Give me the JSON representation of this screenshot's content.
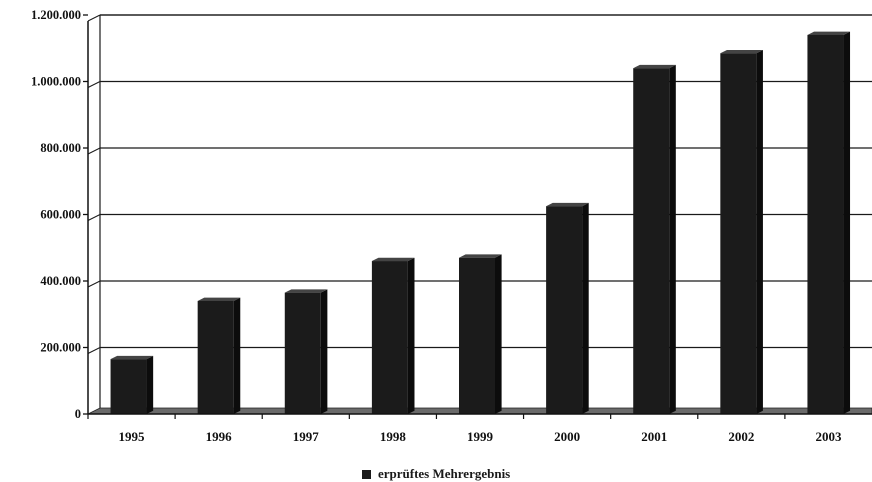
{
  "chart_data": {
    "type": "bar",
    "categories": [
      "1995",
      "1996",
      "1997",
      "1998",
      "1999",
      "2000",
      "2001",
      "2002",
      "2003"
    ],
    "series": [
      {
        "name": "erprüftes Mehrergebnis",
        "values": [
          165000,
          340000,
          365000,
          460000,
          470000,
          625000,
          1040000,
          1085000,
          1140000
        ]
      }
    ],
    "y_ticks": [
      "0",
      "200.000",
      "400.000",
      "600.000",
      "800.000",
      "1.000.000",
      "1.200.000"
    ],
    "ylim": [
      0,
      1200000
    ],
    "grid": true,
    "legend_position": "bottom",
    "colors": {
      "bar": "#1b1b1b",
      "bar_side": "#0c0c0c",
      "bar_top": "#444444",
      "floor": "#6a6a6a"
    }
  }
}
